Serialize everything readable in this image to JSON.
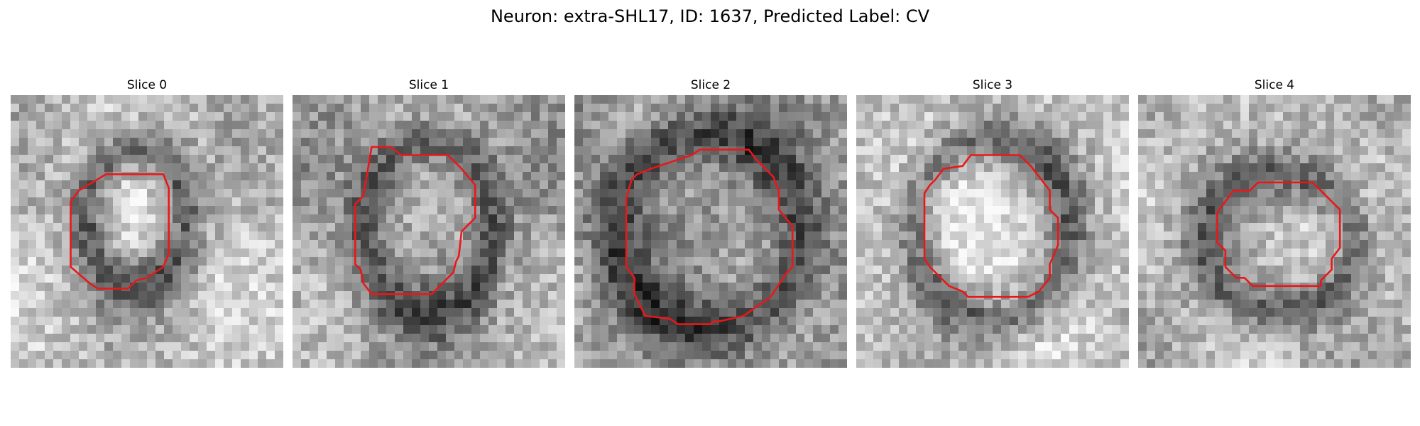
{
  "figure": {
    "title": "Neuron: extra-SHL17, ID: 1637, Predicted Label: CV"
  },
  "colors": {
    "contour": "#e8181a",
    "background": "#ffffff"
  },
  "panels": [
    {
      "title": "Slice 0"
    },
    {
      "title": "Slice 1"
    },
    {
      "title": "Slice 2"
    },
    {
      "title": "Slice 3"
    },
    {
      "title": "Slice 4"
    }
  ]
}
